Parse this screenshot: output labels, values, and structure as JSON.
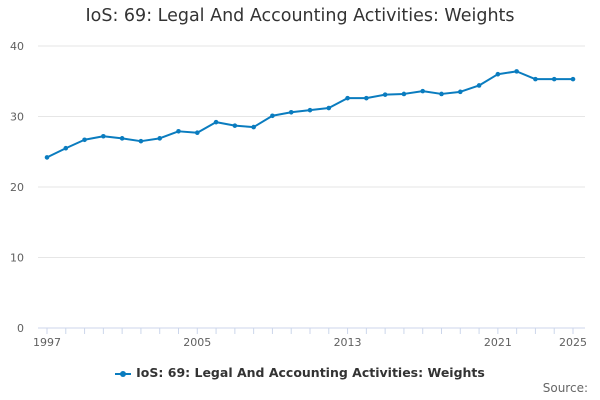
{
  "colors": {
    "series": "#0a7cbf",
    "grid": "#e6e6e6",
    "axis": "#ccd6eb",
    "text": "#333333"
  },
  "footer": {
    "source_label": "Source:"
  },
  "chart_data": {
    "type": "line",
    "title": "IoS: 69: Legal And Accounting Activities: Weights",
    "xlabel": "",
    "ylabel": "",
    "xlim": [
      1997,
      2025
    ],
    "ylim": [
      0,
      40
    ],
    "yticks": [
      0,
      10,
      20,
      30,
      40
    ],
    "xtick_labels": [
      "1997",
      "2005",
      "2013",
      "2021",
      "2025"
    ],
    "xtick_values": [
      1997,
      2005,
      2013,
      2021,
      2025
    ],
    "grid": true,
    "legend": "bottom-center",
    "series": [
      {
        "name": "IoS: 69: Legal And Accounting Activities: Weights",
        "x": [
          1997,
          1998,
          1999,
          2000,
          2001,
          2002,
          2003,
          2004,
          2005,
          2006,
          2007,
          2008,
          2009,
          2010,
          2011,
          2012,
          2013,
          2014,
          2015,
          2016,
          2017,
          2018,
          2019,
          2020,
          2021,
          2022,
          2023,
          2024,
          2025
        ],
        "values": [
          24.2,
          25.5,
          26.7,
          27.2,
          26.9,
          26.5,
          26.9,
          27.9,
          27.7,
          29.2,
          28.7,
          28.5,
          30.1,
          30.6,
          30.9,
          31.2,
          32.6,
          32.6,
          33.1,
          33.2,
          33.6,
          33.2,
          33.5,
          34.4,
          36.0,
          36.4,
          35.3,
          35.3,
          35.3
        ]
      }
    ]
  }
}
